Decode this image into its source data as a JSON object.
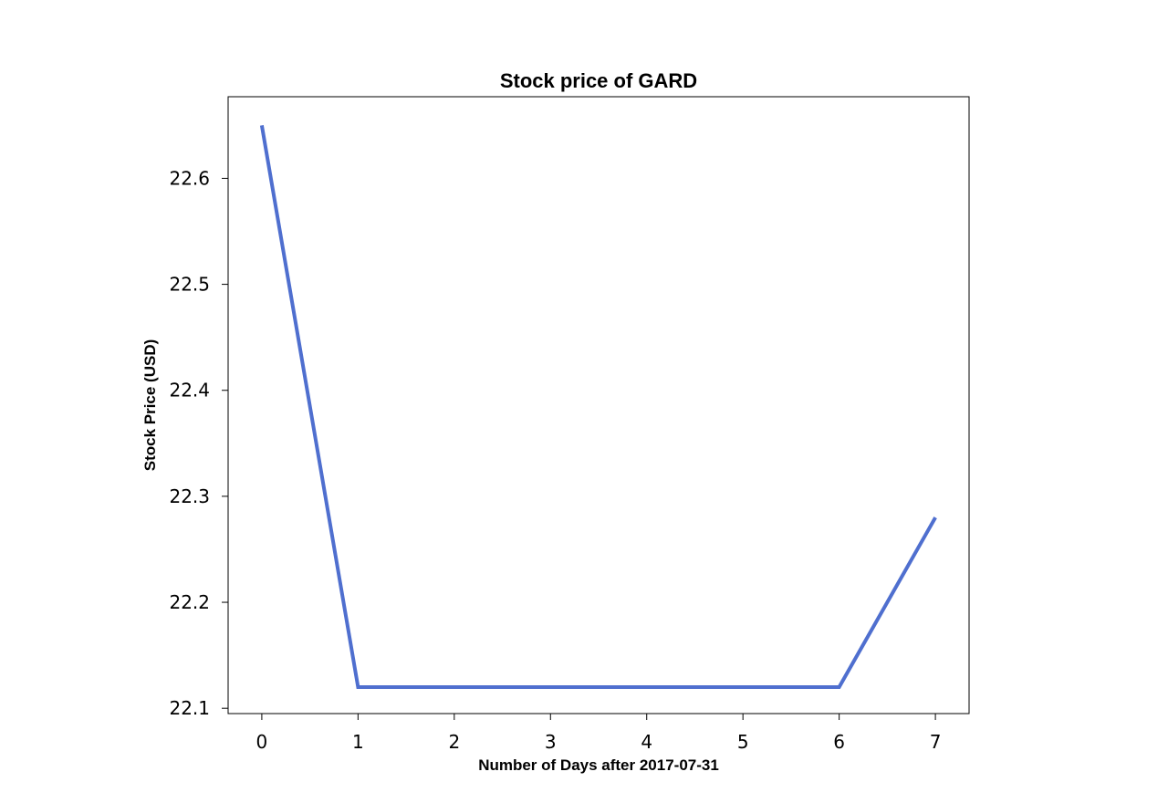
{
  "chart_data": {
    "type": "line",
    "title": "Stock price of GARD",
    "xlabel": "Number of Days after 2017-07-31",
    "ylabel": "Stock Price (USD)",
    "x": [
      0,
      1,
      2,
      3,
      4,
      5,
      6,
      7
    ],
    "x_ticks": [
      "0",
      "1",
      "2",
      "3",
      "4",
      "5",
      "6",
      "7"
    ],
    "y_ticks": [
      "22.1",
      "22.2",
      "22.3",
      "22.4",
      "22.5",
      "22.6"
    ],
    "xlim": [
      -0.35,
      7.35
    ],
    "ylim": [
      22.095,
      22.677
    ],
    "grid": false,
    "series": [
      {
        "color": "#4f6fcf",
        "x": [
          0,
          1,
          6,
          7
        ],
        "values": [
          22.65,
          22.12,
          22.12,
          22.28
        ]
      }
    ]
  }
}
